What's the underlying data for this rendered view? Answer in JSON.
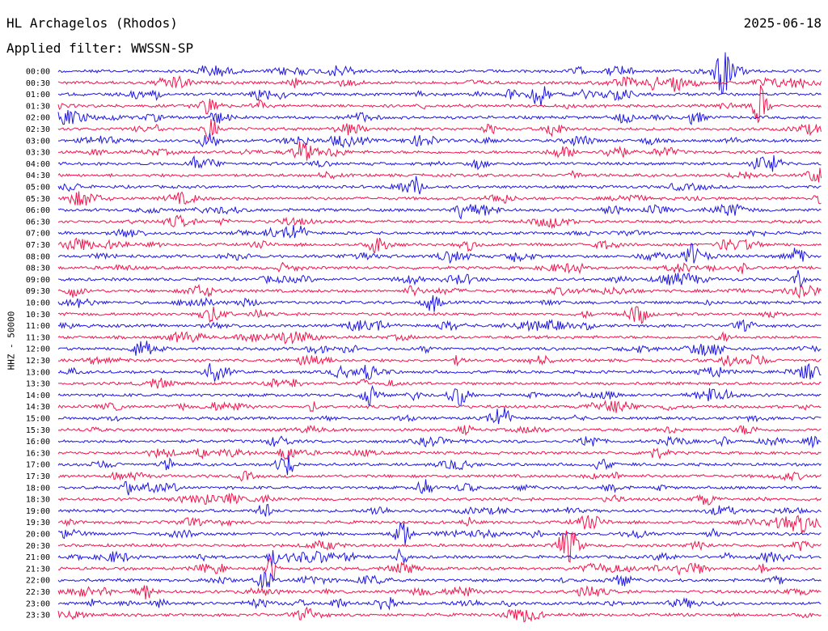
{
  "header": {
    "station": "HL Archagelos (Rhodos)",
    "date": "2025-06-18",
    "filter": "Applied filter: WWSSN-SP"
  },
  "channel_label": "HHZ - 50000",
  "colors": {
    "blue": "#1f16e4",
    "red": "#f2154e"
  },
  "chart_data": {
    "type": "line",
    "title": "HL Archagelos (Rhodos)",
    "subtitle": "Applied filter: WWSSN-SP",
    "ylabel": "HHZ - 50000",
    "xlabel": "",
    "grid": false,
    "legend": "none",
    "series_colors": [
      "#1f16e4",
      "#f2154e"
    ],
    "rows": [
      "00:00",
      "00:30",
      "01:00",
      "01:30",
      "02:00",
      "02:30",
      "03:00",
      "03:30",
      "04:00",
      "04:30",
      "05:00",
      "05:30",
      "06:00",
      "06:30",
      "07:00",
      "07:30",
      "08:00",
      "08:30",
      "09:00",
      "09:30",
      "10:00",
      "10:30",
      "11:00",
      "11:30",
      "12:00",
      "12:30",
      "13:00",
      "13:30",
      "14:00",
      "14:30",
      "15:00",
      "15:30",
      "16:00",
      "16:30",
      "17:00",
      "17:30",
      "18:00",
      "18:30",
      "19:00",
      "19:30",
      "20:00",
      "20:30",
      "21:00",
      "21:30",
      "22:00",
      "22:30",
      "23:00",
      "23:30"
    ],
    "events": [
      {
        "row": "00:00",
        "x": 0.87,
        "amp": 4.0
      },
      {
        "row": "00:30",
        "x": 0.78,
        "amp": 1.2
      },
      {
        "row": "00:30",
        "x": 0.81,
        "amp": 1.5
      },
      {
        "row": "01:00",
        "x": 0.63,
        "amp": 2.2
      },
      {
        "row": "01:30",
        "x": 0.92,
        "amp": 3.5
      },
      {
        "row": "01:30",
        "x": 0.2,
        "amp": 1.5
      },
      {
        "row": "02:30",
        "x": 0.2,
        "amp": 2.5
      },
      {
        "row": "02:30",
        "x": 0.65,
        "amp": 1.5
      },
      {
        "row": "03:30",
        "x": 0.32,
        "amp": 1.3
      },
      {
        "row": "03:30",
        "x": 0.73,
        "amp": 1.4
      },
      {
        "row": "05:00",
        "x": 0.47,
        "amp": 1.2
      },
      {
        "row": "06:00",
        "x": 0.53,
        "amp": 1.4
      },
      {
        "row": "07:00",
        "x": 0.31,
        "amp": 1.6
      },
      {
        "row": "07:30",
        "x": 0.42,
        "amp": 1.8
      },
      {
        "row": "08:00",
        "x": 0.83,
        "amp": 1.6
      },
      {
        "row": "08:00",
        "x": 0.97,
        "amp": 1.7
      },
      {
        "row": "09:00",
        "x": 0.97,
        "amp": 1.5
      },
      {
        "row": "10:00",
        "x": 0.49,
        "amp": 1.6
      },
      {
        "row": "10:30",
        "x": 0.76,
        "amp": 1.6
      },
      {
        "row": "12:00",
        "x": 0.11,
        "amp": 1.8
      },
      {
        "row": "14:00",
        "x": 0.41,
        "amp": 1.6
      },
      {
        "row": "15:00",
        "x": 0.58,
        "amp": 1.7
      },
      {
        "row": "16:30",
        "x": 0.3,
        "amp": 1.6
      },
      {
        "row": "17:00",
        "x": 0.3,
        "amp": 1.7
      },
      {
        "row": "18:00",
        "x": 0.48,
        "amp": 2.0
      },
      {
        "row": "18:00",
        "x": 0.09,
        "amp": 1.5
      },
      {
        "row": "19:00",
        "x": 0.27,
        "amp": 1.5
      },
      {
        "row": "19:30",
        "x": 0.97,
        "amp": 1.8
      },
      {
        "row": "20:00",
        "x": 0.45,
        "amp": 2.2
      },
      {
        "row": "20:30",
        "x": 0.67,
        "amp": 2.0
      },
      {
        "row": "21:00",
        "x": 0.28,
        "amp": 1.8
      },
      {
        "row": "21:00",
        "x": 0.45,
        "amp": 2.0
      },
      {
        "row": "21:30",
        "x": 0.28,
        "amp": 2.0
      },
      {
        "row": "22:00",
        "x": 0.27,
        "amp": 2.2
      },
      {
        "row": "23:00",
        "x": 0.43,
        "amp": 1.6
      }
    ]
  }
}
